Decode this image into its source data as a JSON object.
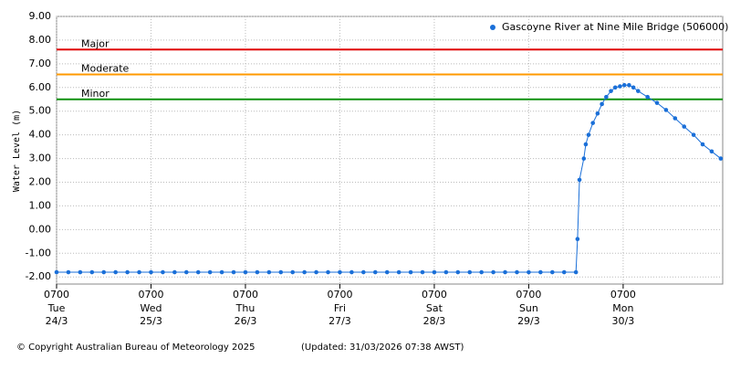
{
  "chart_data": {
    "type": "line",
    "ylabel": "Water Level (m)",
    "ylim": [
      -2.3,
      9
    ],
    "yticks": [
      {
        "value": -2,
        "label": "-2.00"
      },
      {
        "value": -1,
        "label": "-1.00"
      },
      {
        "value": 0,
        "label": "0.00"
      },
      {
        "value": 1,
        "label": "1.00"
      },
      {
        "value": 2,
        "label": "2.00"
      },
      {
        "value": 3,
        "label": "3.00"
      },
      {
        "value": 4,
        "label": "4.00"
      },
      {
        "value": 5,
        "label": "5.00"
      },
      {
        "value": 6,
        "label": "6.00"
      },
      {
        "value": 7,
        "label": "7.00"
      },
      {
        "value": 8,
        "label": "8.00"
      },
      {
        "value": 9,
        "label": "9.00"
      }
    ],
    "xlim": [
      0,
      169.3
    ],
    "xticks": [
      {
        "value": 0,
        "label": "0700",
        "day": "Tue",
        "date": "24/3"
      },
      {
        "value": 24,
        "label": "0700",
        "day": "Wed",
        "date": "25/3"
      },
      {
        "value": 48,
        "label": "0700",
        "day": "Thu",
        "date": "26/3"
      },
      {
        "value": 72,
        "label": "0700",
        "day": "Fri",
        "date": "27/3"
      },
      {
        "value": 96,
        "label": "0700",
        "day": "Sat",
        "date": "28/3"
      },
      {
        "value": 120,
        "label": "0700",
        "day": "Sun",
        "date": "29/3"
      },
      {
        "value": 144,
        "label": "0700",
        "day": "Mon",
        "date": "30/3"
      }
    ],
    "grid": true,
    "legend": "upper right",
    "thresholds": [
      {
        "label": "Major",
        "value": 7.6,
        "color": "#e00000"
      },
      {
        "label": "Moderate",
        "value": 6.55,
        "color": "#ff9900"
      },
      {
        "label": "Minor",
        "value": 5.5,
        "color": "#109010"
      }
    ],
    "series": [
      {
        "name": "Gascoyne River at Nine Mile Bridge (506000)",
        "color": "#1a6fd8",
        "x": [
          0,
          3,
          6,
          9,
          12,
          15,
          18,
          21,
          24,
          27,
          30,
          33,
          36,
          39,
          42,
          45,
          48,
          51,
          54,
          57,
          60,
          63,
          66,
          69,
          72,
          75,
          78,
          81,
          84,
          87,
          90,
          93,
          96,
          99,
          102,
          105,
          108,
          111,
          114,
          117,
          120,
          123,
          126,
          129,
          132,
          132.4,
          132.9,
          134.0,
          134.5,
          135.2,
          136.3,
          137.5,
          138.6,
          139.7,
          140.9,
          142.0,
          143.2,
          144.3,
          145.5,
          146.6,
          147.8,
          150.2,
          152.6,
          154.9,
          157.2,
          159.5,
          161.9,
          164.2,
          166.5,
          168.8
        ],
        "values": [
          -1.8,
          -1.8,
          -1.8,
          -1.8,
          -1.8,
          -1.8,
          -1.8,
          -1.8,
          -1.8,
          -1.8,
          -1.8,
          -1.8,
          -1.8,
          -1.8,
          -1.8,
          -1.8,
          -1.8,
          -1.8,
          -1.8,
          -1.8,
          -1.8,
          -1.8,
          -1.8,
          -1.8,
          -1.8,
          -1.8,
          -1.8,
          -1.8,
          -1.8,
          -1.8,
          -1.8,
          -1.8,
          -1.8,
          -1.8,
          -1.8,
          -1.8,
          -1.8,
          -1.8,
          -1.8,
          -1.8,
          -1.8,
          -1.8,
          -1.8,
          -1.8,
          -1.8,
          -0.4,
          2.1,
          3.0,
          3.6,
          4.0,
          4.5,
          4.9,
          5.3,
          5.6,
          5.85,
          6.0,
          6.05,
          6.1,
          6.1,
          6.0,
          5.85,
          5.6,
          5.35,
          5.05,
          4.7,
          4.35,
          4.0,
          3.6,
          3.3,
          3.0
        ]
      }
    ],
    "copyright": "© Copyright Australian Bureau of Meteorology 2025",
    "updated": "(Updated: 31/03/2026 07:38 AWST)"
  }
}
